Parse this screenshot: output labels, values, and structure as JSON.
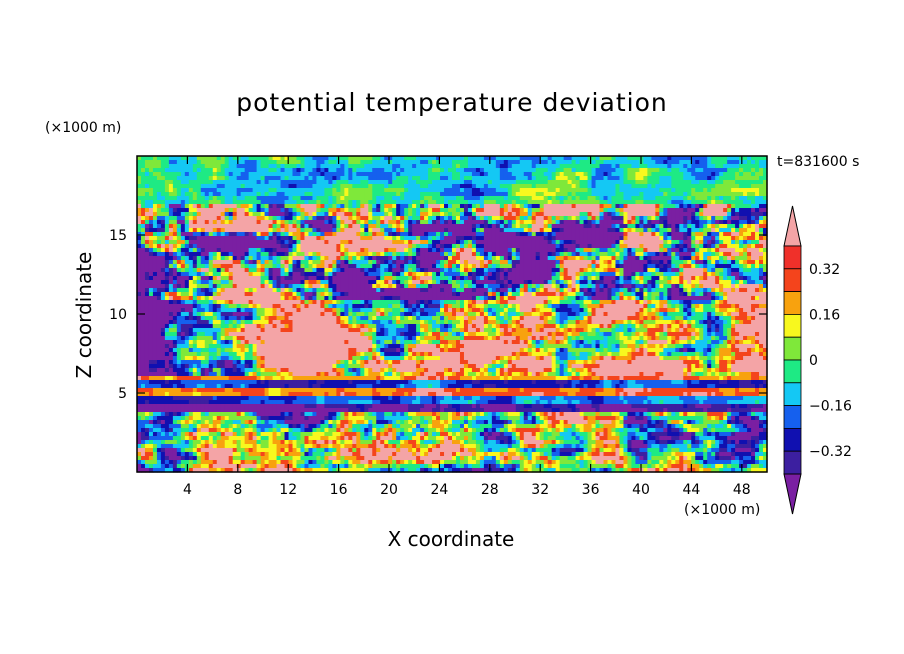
{
  "chart_data": {
    "type": "heatmap",
    "title": "potential temperature deviation",
    "time_label": "t=831600 s",
    "xlabel": "X coordinate",
    "ylabel": "Z coordinate",
    "x_unit": "(×1000 m)",
    "y_unit": "(×1000 m)",
    "xlim": [
      0,
      50
    ],
    "ylim": [
      0,
      20
    ],
    "x_ticks": [
      "4",
      "8",
      "12",
      "16",
      "20",
      "24",
      "28",
      "32",
      "36",
      "40",
      "44",
      "48"
    ],
    "y_ticks": [
      "5",
      "10",
      "15"
    ],
    "colorbar": {
      "levels": [
        -0.4,
        -0.32,
        -0.24,
        -0.16,
        -0.08,
        0,
        0.08,
        0.16,
        0.24,
        0.32,
        0.4
      ],
      "labels": [
        "0.32",
        "0.16",
        "0",
        "−0.16",
        "−0.32"
      ],
      "colors": [
        "#7a1fa2",
        "#3c1fa0",
        "#1010b0",
        "#1560ee",
        "#14c8f4",
        "#1eea84",
        "#7fe83a",
        "#f8f81e",
        "#f8a20e",
        "#f4441c",
        "#f0302a",
        "#f4a4a6"
      ]
    }
  }
}
